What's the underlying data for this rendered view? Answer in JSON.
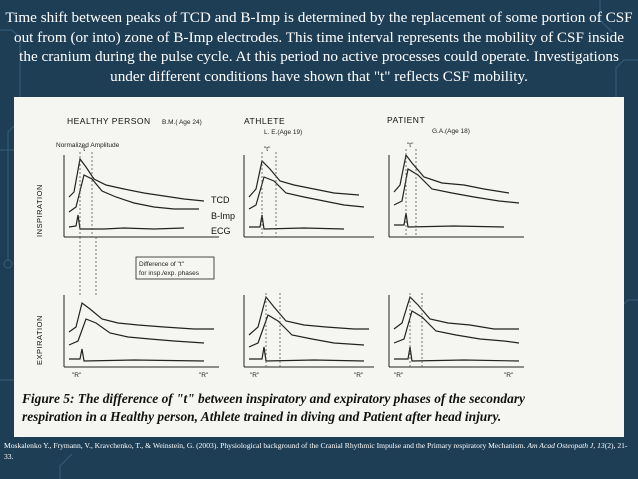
{
  "slide": {
    "background_color": "#1e3e56",
    "title": "Time shift between peaks of TCD and B-Imp is determined by the replacement of some portion of CSF out from (or into) zone of B-Imp electrodes. This time interval represents the mobility of CSF inside the cranium during the pulse cycle. At this period no active processes could operate. Investigations under different conditions have shown that \"t\" reflects CSF mobility."
  },
  "figure": {
    "groups": {
      "healthy": {
        "label": "HEALTHY PERSON",
        "subject": "B.M.( Age 24)"
      },
      "athlete": {
        "label": "ATHLETE",
        "subject": "L. E.(Age 19)"
      },
      "patient": {
        "label": "PATIENT",
        "subject": "G.A.(Age 18)"
      }
    },
    "y_axis_label": "Normalized Amplitude",
    "row_labels": {
      "inspiration": "INSPIRATION",
      "expiration": "EXPIRATION"
    },
    "legend": {
      "tcd": "TCD",
      "bimp": "B-Imp",
      "ecg": "ECG"
    },
    "t_marker": "\"t\"",
    "annotation": {
      "line1": "Difference of \"t\"",
      "line2": "for insp./exp. phases"
    },
    "r_marker": "\"R\"",
    "caption": {
      "line1": "Figure 5: The difference of \"t\" between inspiratory and expiratory phases of the secondary",
      "line2": "respiration in a Healthy person, Athlete trained in diving and Patient after head injury."
    }
  },
  "citation": {
    "text": "Moskalenko Y., Frymann, V., Kravchenko, T., & Weinstein, G. (2003). Physiological background of the Cranial Rhythmic Impulse and the Primary respiratory Mechanism.",
    "journal": "Am Acad Osteopath J, 13",
    "pages": "(2), 21-33."
  }
}
